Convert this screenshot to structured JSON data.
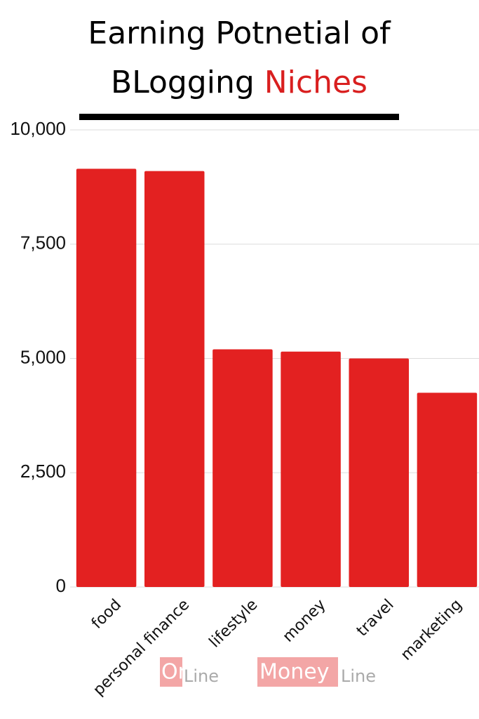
{
  "chart_data": {
    "type": "bar",
    "title_lines": [
      "Earning Potnetial of",
      "BLogging"
    ],
    "title_highlight": "Niches",
    "categories": [
      "food",
      "personal finance",
      "lifestyle",
      "money",
      "travel",
      "marketing"
    ],
    "values": [
      9150,
      9100,
      5200,
      5150,
      5000,
      4250
    ],
    "color": "#e32121",
    "ylim": [
      0,
      10000
    ],
    "yticks": [
      0,
      {
        "value": 2500,
        "label": "2,500"
      },
      {
        "value": 5000,
        "label": "5,000"
      },
      {
        "value": 7500,
        "label": "7,500"
      },
      {
        "value": 10000,
        "label": "10,000"
      }
    ],
    "grid": true,
    "watermark": [
      "On",
      "Line",
      "Money",
      "Line"
    ]
  }
}
